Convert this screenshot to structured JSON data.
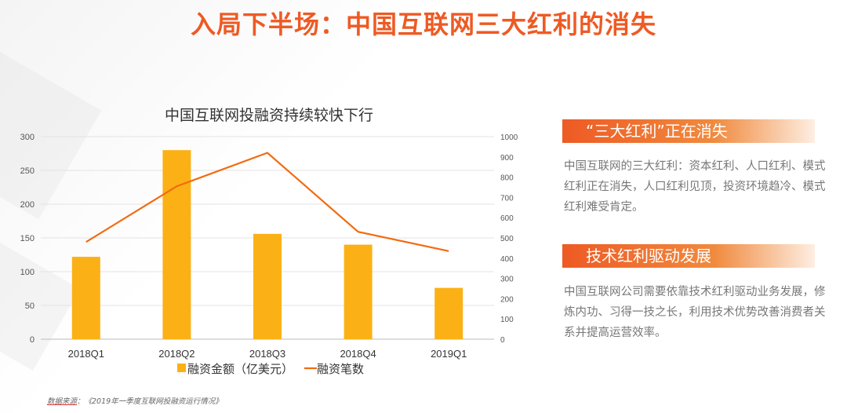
{
  "page": {
    "title": "入局下半场：中国互联网三大红利的消失",
    "source_label": "数据来源",
    "source_text": "：《2019年一季度互联网投融资运行情况》"
  },
  "sidebar": {
    "section1": {
      "header": "“三大红利”正在消失",
      "text": "中国互联网的三大红利：资本红利、人口红利、模式红利正在消失，人口红利见顶，投资环境趋冷、模式红利难受肯定。"
    },
    "section2": {
      "header": "技术红利驱动发展",
      "text": "中国互联网公司需要依靠技术红利驱动业务发展，修炼内功、习得一技之长，利用技术优势改善消费者关系并提高运营效率。"
    }
  },
  "colors": {
    "accent": "#ee5a24",
    "bar": "#fbb116",
    "line": "#f26b10"
  },
  "chart_data": {
    "type": "bar",
    "title": "中国互联网投融资持续较快下行",
    "categories": [
      "2018Q1",
      "2018Q2",
      "2018Q3",
      "2018Q4",
      "2019Q1"
    ],
    "series": [
      {
        "name": "融资金额（亿美元）",
        "type": "bar",
        "axis": "left",
        "values": [
          122,
          280,
          156,
          140,
          76
        ]
      },
      {
        "name": "融资笔数",
        "type": "line",
        "axis": "right",
        "values": [
          480,
          755,
          920,
          530,
          435
        ]
      }
    ],
    "ylim": [
      0,
      300
    ],
    "yticks": [
      "0",
      "50",
      "100",
      "150",
      "200",
      "250",
      "300"
    ],
    "y2lim": [
      0,
      1000
    ],
    "y2ticks": [
      "0",
      "100",
      "200",
      "300",
      "400",
      "500",
      "600",
      "700",
      "800",
      "900",
      "1000"
    ],
    "legend": "bottom"
  }
}
